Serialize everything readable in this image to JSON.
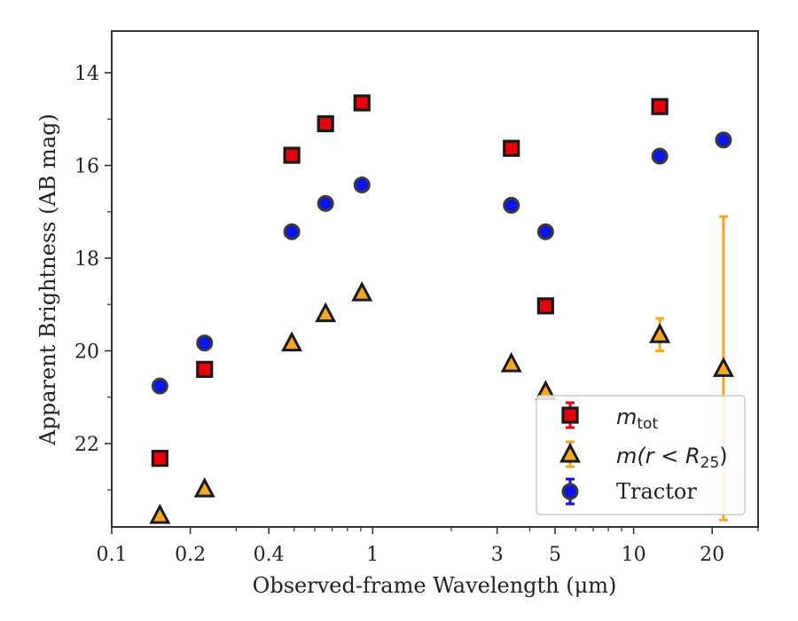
{
  "chart_data": {
    "type": "scatter",
    "xlabel": "Observed-frame Wavelength (μm)",
    "ylabel": "Apparent Brightness (AB mag)",
    "xscale": "log",
    "xlim": [
      0.1,
      30
    ],
    "ylim": [
      23.8,
      13.1
    ],
    "y_inverted": true,
    "x_ticks": [
      0.1,
      0.2,
      0.4,
      1,
      3,
      5,
      10,
      20
    ],
    "x_tick_labels": [
      "0.1",
      "0.2",
      "0.4",
      "1",
      "3",
      "5",
      "10",
      "20"
    ],
    "y_ticks": [
      14,
      16,
      18,
      20,
      22
    ],
    "y_tick_labels": [
      "14",
      "16",
      "18",
      "20",
      "22"
    ],
    "grid": false,
    "legend_position": "lower-right",
    "legend": {
      "m_tot_base": "m",
      "m_tot_sub": "tot",
      "m_r_main": "m(r < R",
      "m_r_sub": "25",
      "m_r_close": ")",
      "tractor": "Tractor"
    },
    "series": [
      {
        "name": "m_tot",
        "marker": "square",
        "color": "#e8000b",
        "edge": "#1a1a1a",
        "points": [
          {
            "x": 0.153,
            "y": 22.32
          },
          {
            "x": 0.227,
            "y": 20.4
          },
          {
            "x": 0.49,
            "y": 15.78
          },
          {
            "x": 0.66,
            "y": 15.1
          },
          {
            "x": 0.91,
            "y": 14.65
          },
          {
            "x": 3.4,
            "y": 15.63
          },
          {
            "x": 4.6,
            "y": 19.03
          },
          {
            "x": 12.6,
            "y": 14.73
          }
        ]
      },
      {
        "name": "m(r<R25)",
        "marker": "triangle",
        "color": "#f5a623",
        "edge": "#1a1a1a",
        "points": [
          {
            "x": 0.153,
            "y": 23.55
          },
          {
            "x": 0.227,
            "y": 22.98
          },
          {
            "x": 0.49,
            "y": 19.83
          },
          {
            "x": 0.66,
            "y": 19.2
          },
          {
            "x": 0.91,
            "y": 18.75
          },
          {
            "x": 3.4,
            "y": 20.28
          },
          {
            "x": 4.6,
            "y": 20.88
          },
          {
            "x": 12.6,
            "y": 19.65,
            "err": 0.35
          },
          {
            "x": 22.1,
            "y": 20.38,
            "err_low": 17.1,
            "err_high": 23.65
          }
        ]
      },
      {
        "name": "Tractor",
        "marker": "circle",
        "color": "#0a14f0",
        "edge": "#3a3a3a",
        "points": [
          {
            "x": 0.153,
            "y": 20.76
          },
          {
            "x": 0.227,
            "y": 19.83
          },
          {
            "x": 0.49,
            "y": 17.43
          },
          {
            "x": 0.66,
            "y": 16.82
          },
          {
            "x": 0.91,
            "y": 16.42
          },
          {
            "x": 3.4,
            "y": 16.86
          },
          {
            "x": 4.6,
            "y": 17.43
          },
          {
            "x": 12.6,
            "y": 15.8
          },
          {
            "x": 22.1,
            "y": 15.45
          }
        ]
      }
    ]
  }
}
